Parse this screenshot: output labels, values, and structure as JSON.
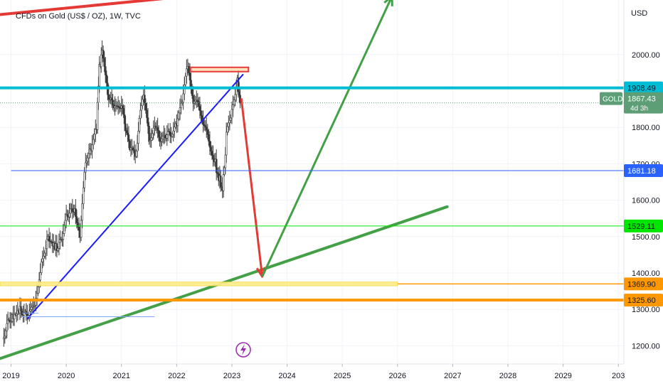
{
  "header": {
    "title": "CFDs on Gold (US$ / OZ), 1W, TVC"
  },
  "chart_data": {
    "type": "candlestick",
    "symbol": "GOLD",
    "interval": "1W",
    "currency": "USD",
    "y_axis_ticks": [
      "2000.00",
      "1800.00",
      "1700.00",
      "1600.00",
      "1500.00",
      "1400.00",
      "1300.00",
      "1200.00"
    ],
    "x_axis_ticks": [
      "2019",
      "2020",
      "2021",
      "2022",
      "2023",
      "2024",
      "2025",
      "2026",
      "2027",
      "2028",
      "2029",
      "203"
    ],
    "ylim": [
      1150,
      2150
    ],
    "xlim": [
      2018.8,
      2030.1
    ],
    "price_labels": [
      {
        "id": "cyan",
        "value": "1908.49",
        "color": "#00bcd4",
        "text_color": "#131722"
      },
      {
        "id": "current",
        "value": "1867.43",
        "sub": "4d 3h",
        "color": "#5e9e77",
        "text_color": "#ffffff",
        "tag": "GOLD"
      },
      {
        "id": "blue",
        "value": "1681.18",
        "color": "#2962ff",
        "text_color": "#ffffff"
      },
      {
        "id": "green",
        "value": "1529.11",
        "color": "#00e600",
        "text_color": "#131722"
      },
      {
        "id": "orange-upper",
        "value": "1369.90",
        "color": "#ff9800",
        "text_color": "#131722"
      },
      {
        "id": "orange-lower",
        "value": "1325.60",
        "color": "#ff9800",
        "text_color": "#131722"
      }
    ],
    "weekly_closes_approx": [
      {
        "x": 2018.85,
        "y": 1208
      },
      {
        "x": 2019.0,
        "y": 1285
      },
      {
        "x": 2019.2,
        "y": 1300
      },
      {
        "x": 2019.35,
        "y": 1285
      },
      {
        "x": 2019.45,
        "y": 1335
      },
      {
        "x": 2019.55,
        "y": 1420
      },
      {
        "x": 2019.65,
        "y": 1500
      },
      {
        "x": 2019.85,
        "y": 1475
      },
      {
        "x": 2020.0,
        "y": 1545
      },
      {
        "x": 2020.15,
        "y": 1590
      },
      {
        "x": 2020.25,
        "y": 1500
      },
      {
        "x": 2020.35,
        "y": 1720
      },
      {
        "x": 2020.45,
        "y": 1735
      },
      {
        "x": 2020.55,
        "y": 1810
      },
      {
        "x": 2020.6,
        "y": 1970
      },
      {
        "x": 2020.65,
        "y": 2010
      },
      {
        "x": 2020.75,
        "y": 1900
      },
      {
        "x": 2020.9,
        "y": 1850
      },
      {
        "x": 2021.0,
        "y": 1870
      },
      {
        "x": 2021.15,
        "y": 1730
      },
      {
        "x": 2021.25,
        "y": 1720
      },
      {
        "x": 2021.4,
        "y": 1900
      },
      {
        "x": 2021.5,
        "y": 1770
      },
      {
        "x": 2021.6,
        "y": 1810
      },
      {
        "x": 2021.75,
        "y": 1760
      },
      {
        "x": 2021.9,
        "y": 1790
      },
      {
        "x": 2022.0,
        "y": 1800
      },
      {
        "x": 2022.1,
        "y": 1880
      },
      {
        "x": 2022.2,
        "y": 1960
      },
      {
        "x": 2022.3,
        "y": 1870
      },
      {
        "x": 2022.4,
        "y": 1850
      },
      {
        "x": 2022.5,
        "y": 1800
      },
      {
        "x": 2022.6,
        "y": 1740
      },
      {
        "x": 2022.7,
        "y": 1700
      },
      {
        "x": 2022.78,
        "y": 1650
      },
      {
        "x": 2022.83,
        "y": 1630
      },
      {
        "x": 2022.9,
        "y": 1770
      },
      {
        "x": 2023.0,
        "y": 1850
      },
      {
        "x": 2023.1,
        "y": 1920
      },
      {
        "x": 2023.15,
        "y": 1867
      }
    ],
    "drawings": [
      {
        "type": "trendline",
        "color": "#e53935",
        "from": {
          "x": 2018.8,
          "y": 2110
        },
        "to": {
          "x": 2024.2,
          "y": 2190
        }
      },
      {
        "type": "trendline",
        "color": "#1a1aff",
        "from": {
          "x": 2019.3,
          "y": 1275
        },
        "to": {
          "x": 2023.2,
          "y": 1945
        }
      },
      {
        "type": "trendline",
        "color": "#43a047",
        "from": {
          "x": 2018.8,
          "y": 1165
        },
        "to": {
          "x": 2026.9,
          "y": 1582
        }
      },
      {
        "type": "arrow",
        "color": "#e53935",
        "from": {
          "x": 2023.17,
          "y": 1880
        },
        "to": {
          "x": 2023.55,
          "y": 1390
        }
      },
      {
        "type": "arrow",
        "color": "#43a047",
        "from": {
          "x": 2023.55,
          "y": 1390
        },
        "to": {
          "x": 2025.9,
          "y": 2160
        }
      },
      {
        "type": "box",
        "color": "#e53935",
        "x0": 2022.25,
        "x1": 2023.3,
        "y0": 1955,
        "y1": 1965
      },
      {
        "type": "hline",
        "color": "#2962ff",
        "x0": 2019.0,
        "y": 1681.18
      },
      {
        "type": "hline",
        "color": "#00bcd4",
        "y": 1908.49
      },
      {
        "type": "hline",
        "color": "#00e600",
        "y": 1529.11
      },
      {
        "type": "hline",
        "color": "#ff9800",
        "y": 1369.9
      },
      {
        "type": "hline",
        "color": "#ff9800",
        "y": 1325.6
      },
      {
        "type": "zone",
        "color": "#fff59d",
        "x0": 2018.8,
        "x1": 2026.0,
        "y0": 1365,
        "y1": 1375
      },
      {
        "type": "hline",
        "color": "#7fa7ff",
        "x0": 2019.2,
        "x1": 2021.6,
        "y": 1280
      },
      {
        "type": "hline",
        "color": "#7fa7ff",
        "x0": 2019.2,
        "x1": 2019.5,
        "y": 1290
      }
    ],
    "grid": true,
    "event_icon": "lightning-icon"
  },
  "axis": {
    "currency_label": "USD"
  }
}
